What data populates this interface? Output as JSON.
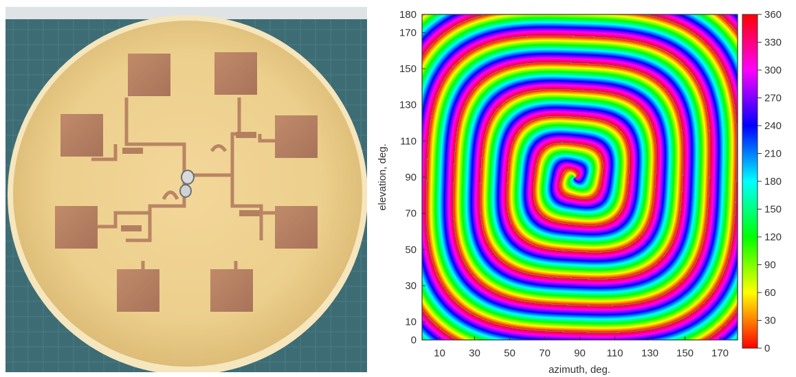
{
  "photo": {
    "subject": "circular-yellow-substrate-with-eight-copper-patch-antennas"
  },
  "phase_map": {
    "xlabel": "azimuth, deg.",
    "ylabel": "elevation, deg.",
    "x_ticks": [
      "10",
      "30",
      "50",
      "70",
      "90",
      "110",
      "130",
      "150",
      "170"
    ],
    "y_ticks": [
      "0",
      "10",
      "30",
      "50",
      "70",
      "90",
      "110",
      "130",
      "150",
      "170",
      "180"
    ],
    "colorbar_ticks": [
      "0",
      "30",
      "60",
      "90",
      "120",
      "150",
      "180",
      "210",
      "240",
      "270",
      "300",
      "330",
      "360"
    ],
    "colorbar_range": [
      0,
      360
    ],
    "x_range": [
      0,
      180
    ],
    "y_range": [
      0,
      180
    ],
    "colormap": "hsv",
    "pattern": "phase-spiral",
    "spiral_center": {
      "azimuth": 87,
      "elevation": 90
    }
  }
}
